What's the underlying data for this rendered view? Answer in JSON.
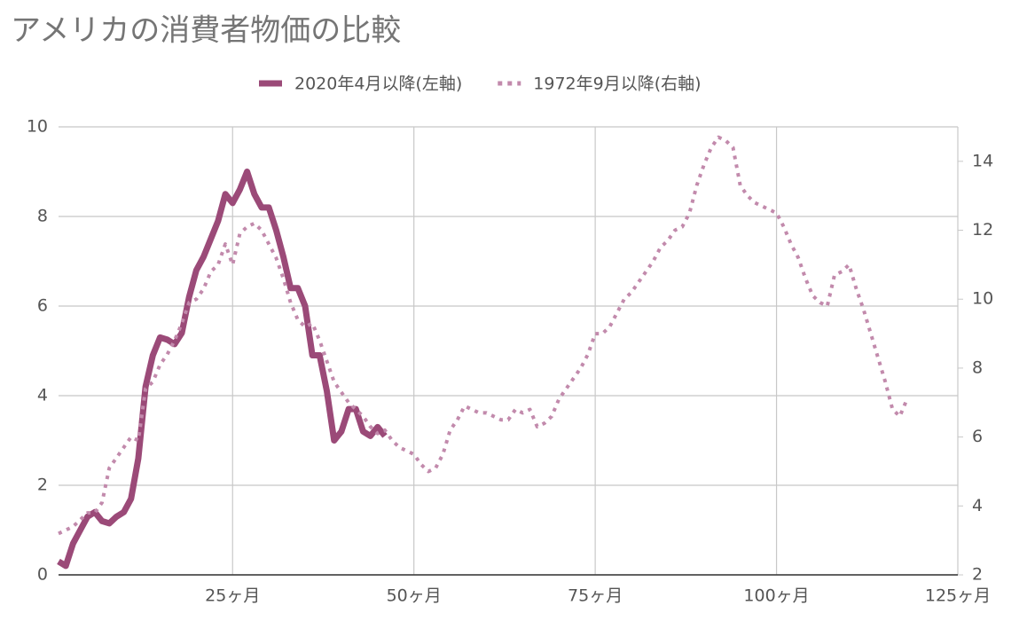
{
  "chart_data": {
    "type": "line",
    "title": "アメリカの消費者物価の比較",
    "xlim": [
      1,
      125
    ],
    "xticks": [
      {
        "value": 25,
        "label": "25ヶ月"
      },
      {
        "value": 50,
        "label": "50ヶ月"
      },
      {
        "value": 75,
        "label": "75ヶ月"
      },
      {
        "value": 100,
        "label": "100ヶ月"
      },
      {
        "value": 125,
        "label": "125ヶ月"
      }
    ],
    "ylim": [
      0,
      10
    ],
    "yticks": [
      0,
      2,
      4,
      6,
      8,
      10
    ],
    "y2lim": [
      2,
      15
    ],
    "y2ticks": [
      2,
      4,
      6,
      8,
      10,
      12,
      14
    ],
    "grid": true,
    "legend": "top",
    "series": [
      {
        "name": "2020年4月以降(左軸)",
        "color": "#9b4a78",
        "style": "solid",
        "axis": "y",
        "x": [
          1,
          2,
          3,
          4,
          5,
          6,
          7,
          8,
          9,
          10,
          11,
          12,
          13,
          14,
          15,
          16,
          17,
          18,
          19,
          20,
          21,
          22,
          23,
          24,
          25,
          26,
          27,
          28,
          29,
          30,
          31,
          32,
          33,
          34,
          35,
          36,
          37,
          38,
          39,
          40,
          41,
          42,
          43,
          44,
          45,
          46
        ],
        "values": [
          0.3,
          0.2,
          0.7,
          1.0,
          1.3,
          1.4,
          1.2,
          1.15,
          1.3,
          1.4,
          1.7,
          2.6,
          4.2,
          4.9,
          5.3,
          5.25,
          5.15,
          5.4,
          6.2,
          6.8,
          7.1,
          7.5,
          7.9,
          8.5,
          8.3,
          8.6,
          9.0,
          8.5,
          8.2,
          8.2,
          7.7,
          7.1,
          6.4,
          6.4,
          6.0,
          4.9,
          4.9,
          4.1,
          3.0,
          3.2,
          3.7,
          3.7,
          3.2,
          3.1,
          3.3,
          3.1
        ]
      },
      {
        "name": "1972年9月以降(右軸)",
        "color": "#c28aac",
        "style": "dotted",
        "axis": "y2",
        "x": [
          1,
          2,
          3,
          4,
          5,
          6,
          7,
          8,
          9,
          10,
          11,
          12,
          13,
          14,
          15,
          16,
          17,
          18,
          19,
          20,
          21,
          22,
          23,
          24,
          25,
          26,
          27,
          28,
          29,
          30,
          31,
          32,
          33,
          34,
          35,
          36,
          37,
          38,
          39,
          40,
          41,
          42,
          43,
          44,
          45,
          46,
          47,
          48,
          49,
          50,
          51,
          52,
          53,
          54,
          55,
          56,
          57,
          58,
          59,
          60,
          61,
          62,
          63,
          64,
          65,
          66,
          67,
          68,
          69,
          70,
          71,
          72,
          73,
          74,
          75,
          76,
          77,
          78,
          79,
          80,
          81,
          82,
          83,
          84,
          85,
          86,
          87,
          88,
          89,
          90,
          91,
          92,
          93,
          94,
          95,
          96,
          97,
          98,
          99,
          100,
          101,
          102,
          103,
          104,
          105,
          106,
          107,
          108,
          109,
          110,
          111,
          112,
          113,
          114,
          115,
          116,
          117,
          118
        ],
        "values": [
          3.2,
          3.3,
          3.4,
          3.6,
          3.8,
          3.8,
          4.1,
          5.1,
          5.4,
          5.7,
          6.0,
          5.9,
          7.4,
          7.6,
          8.1,
          8.4,
          8.8,
          9.3,
          9.9,
          10.0,
          10.3,
          10.8,
          11.0,
          11.6,
          11.0,
          11.9,
          12.1,
          12.2,
          12.0,
          11.6,
          11.2,
          10.6,
          9.9,
          9.4,
          9.2,
          9.3,
          8.8,
          8.2,
          7.6,
          7.3,
          7.0,
          6.8,
          6.6,
          6.3,
          6.1,
          6.2,
          5.9,
          5.7,
          5.6,
          5.5,
          5.2,
          5.0,
          5.1,
          5.5,
          6.2,
          6.5,
          6.9,
          6.8,
          6.7,
          6.7,
          6.6,
          6.5,
          6.5,
          6.8,
          6.7,
          6.8,
          6.3,
          6.4,
          6.6,
          7.1,
          7.4,
          7.7,
          8.0,
          8.4,
          9.0,
          9.0,
          9.2,
          9.6,
          10.0,
          10.2,
          10.5,
          10.8,
          11.1,
          11.5,
          11.7,
          12.0,
          12.1,
          12.5,
          13.3,
          13.9,
          14.4,
          14.7,
          14.6,
          14.4,
          13.3,
          13.0,
          12.8,
          12.7,
          12.6,
          12.5,
          12.1,
          11.6,
          11.2,
          10.6,
          10.1,
          9.9,
          9.8,
          10.7,
          10.8,
          11.0,
          10.3,
          9.7,
          9.0,
          8.3,
          7.6,
          6.8,
          6.6,
          7.1
        ]
      }
    ]
  }
}
